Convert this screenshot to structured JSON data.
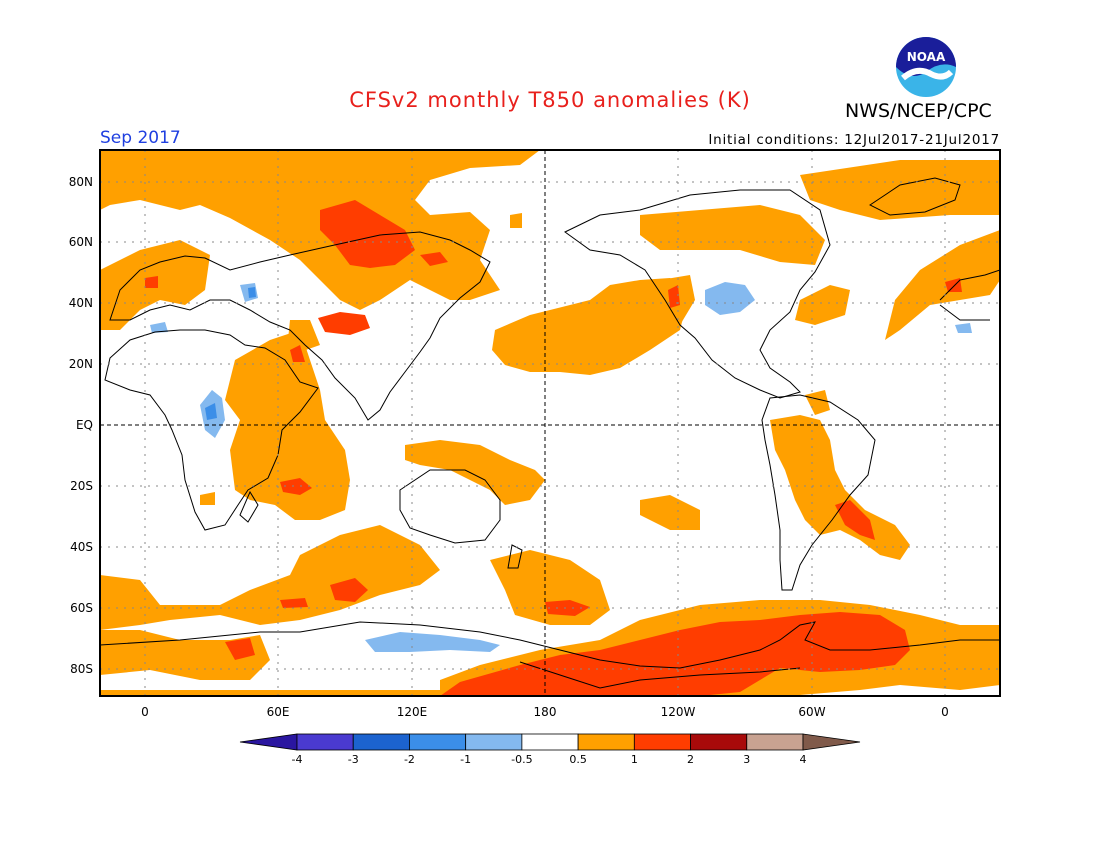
{
  "header": {
    "title": "CFSv2 monthly T850 anomalies (K)",
    "organization": "NWS/NCEP/CPC",
    "logo_text": "NOAA",
    "period": "Sep 2017",
    "initial_conditions": "Initial conditions: 12Jul2017-21Jul2017"
  },
  "map": {
    "lat_labels": [
      "80N",
      "60N",
      "40N",
      "20N",
      "EQ",
      "20S",
      "40S",
      "60S",
      "80S"
    ],
    "lon_labels": [
      "0",
      "60E",
      "120E",
      "180",
      "120W",
      "60W",
      "0"
    ]
  },
  "colorbar": {
    "labels": [
      "-4",
      "-3",
      "-2",
      "-1",
      "-0.5",
      "0.5",
      "1",
      "2",
      "3",
      "4"
    ],
    "colors": [
      "#2a16a0",
      "#4a3ad0",
      "#1c63cf",
      "#3b8ee8",
      "#84b9ef",
      "#ffffff",
      "#ffa000",
      "#ff3d00",
      "#a80a0a",
      "#c8a291",
      "#805a4a"
    ]
  },
  "colors": {
    "orange": "#ffa000",
    "red": "#ff3d00",
    "light_blue": "#84b9ef",
    "mid_blue": "#3b8ee8",
    "title_red": "#e8201c",
    "period_blue": "#1f3fe0"
  }
}
